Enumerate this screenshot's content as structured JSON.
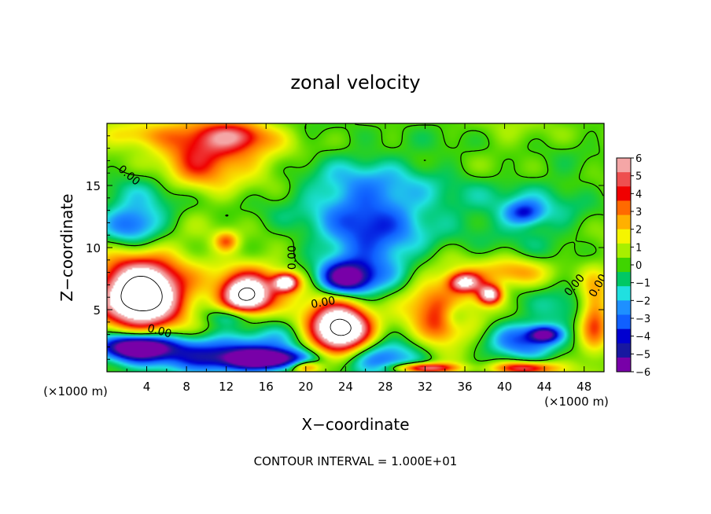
{
  "chart_data": {
    "type": "heatmap",
    "title": "zonal velocity",
    "xlabel": "X−coordinate",
    "ylabel": "Z−coordinate",
    "x_unit": "(×1000 m)",
    "x_unit_secondary": "(×1000 m)",
    "footer": "CONTOUR INTERVAL = 1.000E+01",
    "x_range": [
      0,
      50
    ],
    "z_range": [
      0,
      20
    ],
    "x_ticks": [
      "4",
      "8",
      "12",
      "16",
      "20",
      "24",
      "28",
      "32",
      "36",
      "40",
      "44",
      "48"
    ],
    "x_tick_values": [
      4,
      8,
      12,
      16,
      20,
      24,
      28,
      32,
      36,
      40,
      44,
      48
    ],
    "z_ticks": [
      "5",
      "10",
      "15"
    ],
    "z_tick_values": [
      5,
      10,
      15
    ],
    "colorbar": {
      "labels": [
        "6",
        "5",
        "4",
        "3",
        "2",
        "1",
        "0",
        "−1",
        "−2",
        "−3",
        "−4",
        "−5",
        "−6"
      ],
      "values": [
        6,
        5,
        4,
        3,
        2,
        1,
        0,
        -1,
        -2,
        -3,
        -4,
        -5,
        -6
      ],
      "colors": [
        "#f4a6a6",
        "#ee4f4f",
        "#f00000",
        "#ff6a00",
        "#ffb000",
        "#f5f500",
        "#a8ef00",
        "#3fd400",
        "#00c864",
        "#20e0e0",
        "#1e90ff",
        "#1060ff",
        "#0000d0",
        "#1818a0",
        "#7800a8"
      ]
    },
    "contour_labels": [
      {
        "text": "0.00",
        "x": 2.0,
        "z": 15.6,
        "rotate": 40
      },
      {
        "text": "0.00",
        "x": 19.0,
        "z": 9.2,
        "rotate": -90
      },
      {
        "text": "0.00",
        "x": 21.8,
        "z": 5.3,
        "rotate": -10
      },
      {
        "text": "0.00",
        "x": 5.2,
        "z": 3.0,
        "rotate": 15
      },
      {
        "text": "0.00",
        "x": 47.3,
        "z": 6.8,
        "rotate": -50
      },
      {
        "text": "0.00",
        "x": 49.7,
        "z": 6.8,
        "rotate": -60
      }
    ],
    "blobs": [
      {
        "x": 10,
        "z": 18.5,
        "rx": 6.0,
        "rz": 2.0,
        "v": 3.2
      },
      {
        "x": 9,
        "z": 16.5,
        "rx": 3.5,
        "rz": 2.0,
        "v": 2.4
      },
      {
        "x": 13,
        "z": 19.0,
        "rx": 3.0,
        "rz": 1.0,
        "v": 2.2
      },
      {
        "x": 3,
        "z": 19.0,
        "rx": 3.5,
        "rz": 1.0,
        "v": 1.6
      },
      {
        "x": 16,
        "z": 17,
        "rx": 5.0,
        "rz": 2.5,
        "v": 1.0
      },
      {
        "x": 2.5,
        "z": 11.8,
        "rx": 3.0,
        "rz": 1.5,
        "v": -3.3
      },
      {
        "x": 4,
        "z": 14,
        "rx": 5,
        "rz": 2.5,
        "v": -1.2
      },
      {
        "x": 26,
        "z": 10.5,
        "rx": 5.0,
        "rz": 5.0,
        "v": -3.6
      },
      {
        "x": 25,
        "z": 14.5,
        "rx": 7,
        "rz": 3.5,
        "v": -1.6
      },
      {
        "x": 24,
        "z": 7.5,
        "rx": 2.5,
        "rz": 1.2,
        "v": -5.8
      },
      {
        "x": 40,
        "z": 13,
        "rx": 8.0,
        "rz": 3.0,
        "v": -1.6
      },
      {
        "x": 42,
        "z": 12.8,
        "rx": 1.8,
        "rz": 0.9,
        "v": -3.2
      },
      {
        "x": 3.5,
        "z": 6.2,
        "rx": 3.5,
        "rz": 2.2,
        "v": 9
      },
      {
        "x": 3,
        "z": 6.5,
        "rx": 5.0,
        "rz": 3.5,
        "v": 3.5
      },
      {
        "x": 14,
        "z": 6,
        "rx": 2.2,
        "rz": 1.4,
        "v": 8
      },
      {
        "x": 14.5,
        "z": 7,
        "rx": 4.0,
        "rz": 2.2,
        "v": 3.2
      },
      {
        "x": 18,
        "z": 7.2,
        "rx": 1.2,
        "rz": 0.7,
        "v": 7
      },
      {
        "x": 23.5,
        "z": 3.5,
        "rx": 2.8,
        "rz": 1.8,
        "v": 9
      },
      {
        "x": 23,
        "z": 3.5,
        "rx": 4.8,
        "rz": 2.6,
        "v": 3
      },
      {
        "x": 33,
        "z": 5.5,
        "rx": 4.0,
        "rz": 2.5,
        "v": 3
      },
      {
        "x": 36,
        "z": 7.2,
        "rx": 1.6,
        "rz": 0.8,
        "v": 6
      },
      {
        "x": 38.5,
        "z": 6.2,
        "rx": 1.2,
        "rz": 0.8,
        "v": 7
      },
      {
        "x": 41,
        "z": 8,
        "rx": 3.5,
        "rz": 1.2,
        "v": 2.6
      },
      {
        "x": 34,
        "z": 3.5,
        "rx": 2.5,
        "rz": 1.5,
        "v": 2.4
      },
      {
        "x": 49,
        "z": 4.5,
        "rx": 1.5,
        "rz": 3.0,
        "v": 3.5
      },
      {
        "x": 12,
        "z": 10.5,
        "rx": 1.2,
        "rz": 0.8,
        "v": 3
      },
      {
        "x": 3,
        "z": 2.0,
        "rx": 3.5,
        "rz": 1.0,
        "v": -8
      },
      {
        "x": 9,
        "z": 1.2,
        "rx": 8.0,
        "rz": 1.5,
        "v": -4.2
      },
      {
        "x": 16,
        "z": 1,
        "rx": 4.0,
        "rz": 0.8,
        "v": -7
      },
      {
        "x": 18,
        "z": 2.8,
        "rx": 5,
        "rz": 1.5,
        "v": -2.8
      },
      {
        "x": 28,
        "z": 1.2,
        "rx": 4.0,
        "rz": 1.5,
        "v": -3.8
      },
      {
        "x": 42,
        "z": 2.5,
        "rx": 3.5,
        "rz": 1.5,
        "v": -3.4
      },
      {
        "x": 44,
        "z": 3.0,
        "rx": 1.5,
        "rz": 0.6,
        "v": -5.2
      },
      {
        "x": 12.5,
        "z": 4.5,
        "rx": 2.5,
        "rz": 0.8,
        "v": -2.5
      },
      {
        "x": 35,
        "z": 4.5,
        "rx": 1.5,
        "rz": 1.2,
        "v": -2.8
      },
      {
        "x": 42,
        "z": 0.3,
        "rx": 3,
        "rz": 0.5,
        "v": 5
      },
      {
        "x": 32,
        "z": 0.3,
        "rx": 3,
        "rz": 0.4,
        "v": 6
      },
      {
        "x": 20,
        "z": 0.4,
        "rx": 1.5,
        "rz": 0.5,
        "v": 4
      },
      {
        "x": 46,
        "z": 5,
        "rx": 3,
        "rz": 2,
        "v": -1.5
      }
    ]
  }
}
